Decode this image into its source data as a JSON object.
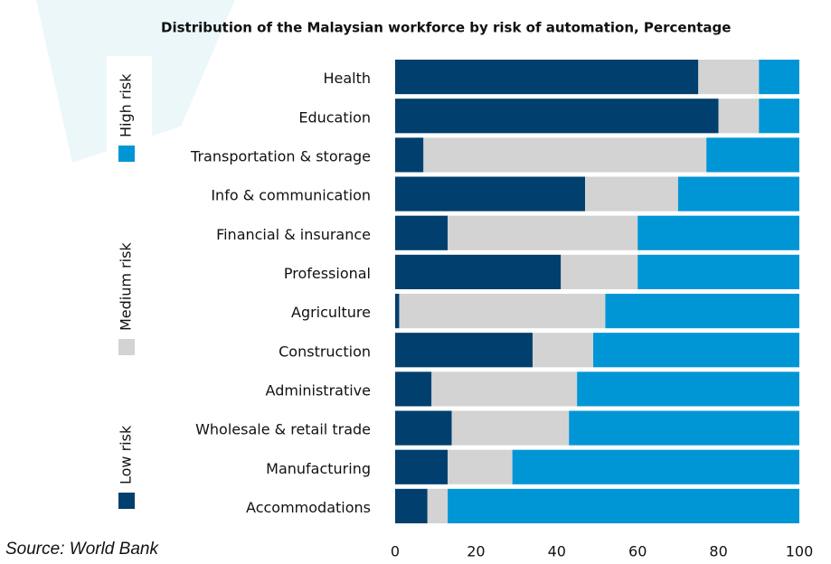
{
  "chart_data": {
    "type": "stacked-bar-horizontal",
    "title": "Distribution of the Malaysian workforce by risk of automation, Percentage",
    "source": "Source: World Bank",
    "categories": [
      "Health",
      "Education",
      "Transportation & storage",
      "Info & communication",
      "Financial & insurance",
      "Professional",
      "Agriculture",
      "Construction",
      "Administrative",
      "Wholesale & retail trade",
      "Manufacturing",
      "Accommodations"
    ],
    "series": [
      {
        "name": "Low risk",
        "color": "#003f6e",
        "values": [
          75,
          80,
          7,
          47,
          13,
          41,
          1,
          34,
          9,
          14,
          13,
          8
        ]
      },
      {
        "name": "Medium risk",
        "color": "#d3d3d3",
        "values": [
          15,
          10,
          70,
          23,
          47,
          19,
          51,
          15,
          36,
          29,
          16,
          5
        ]
      },
      {
        "name": "High risk",
        "color": "#0096d6",
        "values": [
          10,
          10,
          23,
          30,
          40,
          40,
          48,
          51,
          55,
          57,
          71,
          87
        ]
      }
    ],
    "xlim": [
      0,
      100
    ],
    "xticks": [
      0,
      20,
      40,
      60,
      80,
      100
    ]
  }
}
